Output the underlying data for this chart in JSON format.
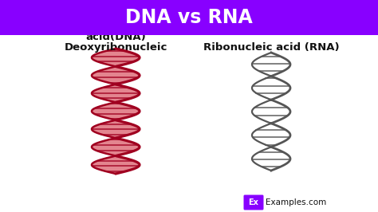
{
  "title": "DNA vs RNA",
  "title_bg_color": "#8800FF",
  "title_text_color": "#FFFFFF",
  "bg_color": "#FFFFFF",
  "dna_label_line1": "Deoxyribonucleic",
  "dna_label_line2": "acid(DNA)",
  "rna_label": "Ribonucleic acid (RNA)",
  "dna_color_dark": "#A00020",
  "dna_color_mid": "#CC2233",
  "rna_color": "#555555",
  "watermark_bg": "#8800FF",
  "watermark_text": "Ex",
  "watermark_suffix": "Examples.com",
  "label_fontsize": 9.5,
  "title_fontsize": 17,
  "title_bar_height": 0.165
}
